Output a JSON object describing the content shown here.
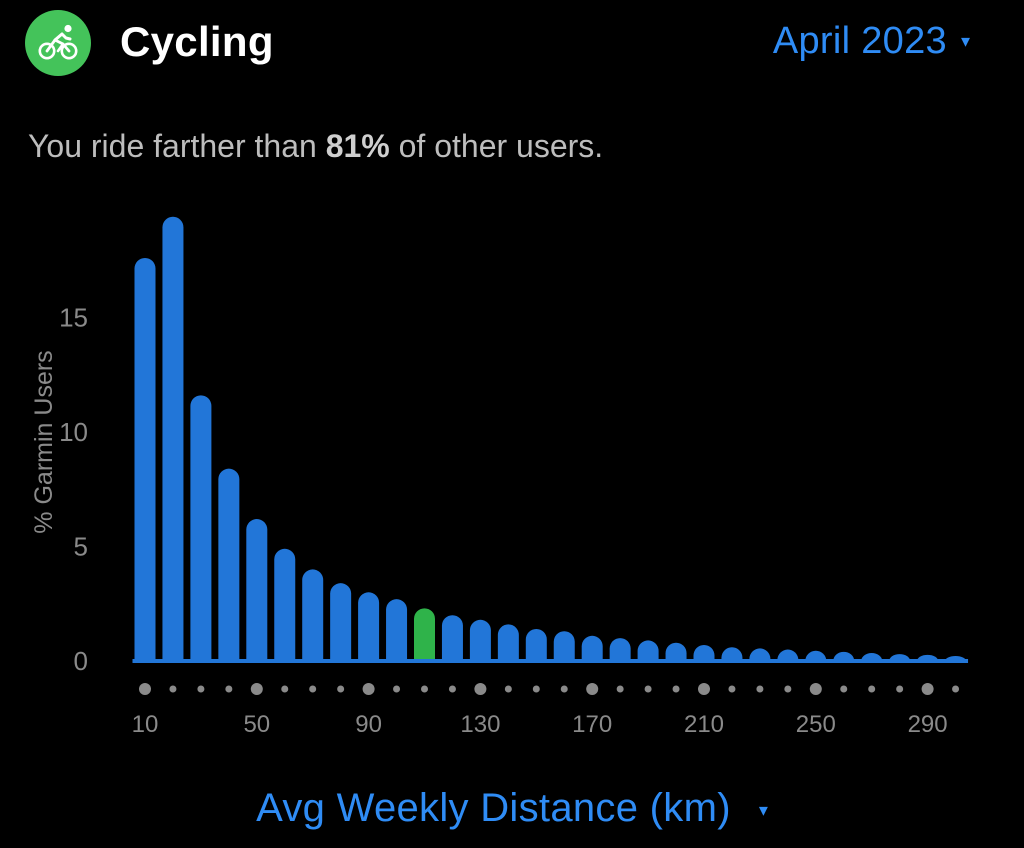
{
  "header": {
    "title": "Cycling",
    "icon": "bicycle-icon",
    "icon_bg": "#44c35a"
  },
  "period": {
    "label": "April 2023",
    "caret": "▾"
  },
  "summary": {
    "prefix": "You ride farther than ",
    "percent": "81%",
    "suffix": " of other users."
  },
  "x_selector": {
    "label": "Avg Weekly Distance (km)",
    "caret": "▾"
  },
  "colors": {
    "accent": "#2f8cf5",
    "bar": "#2276d8",
    "highlight": "#2fb34a",
    "text_muted": "#8a8a8a",
    "dot": "#8a8a8a"
  },
  "chart_data": {
    "type": "bar",
    "ylabel": "% Garmin Users",
    "xlabel": "Avg Weekly Distance (km)",
    "ylim": [
      0,
      20
    ],
    "yticks": [
      0,
      5,
      10,
      15
    ],
    "xticks": [
      10,
      50,
      90,
      130,
      170,
      210,
      250,
      290
    ],
    "categories": [
      10,
      20,
      30,
      40,
      50,
      60,
      70,
      80,
      90,
      100,
      110,
      120,
      130,
      140,
      150,
      160,
      170,
      180,
      190,
      200,
      210,
      220,
      230,
      240,
      250,
      260,
      270,
      280,
      290,
      300
    ],
    "values": [
      17.6,
      19.4,
      11.6,
      8.4,
      6.2,
      4.9,
      4.0,
      3.4,
      3.0,
      2.7,
      2.3,
      2.0,
      1.8,
      1.6,
      1.4,
      1.3,
      1.1,
      1.0,
      0.9,
      0.8,
      0.7,
      0.6,
      0.55,
      0.5,
      0.45,
      0.4,
      0.35,
      0.3,
      0.27,
      0.22
    ],
    "highlight_category": 110,
    "grid": false,
    "legend": "none"
  }
}
